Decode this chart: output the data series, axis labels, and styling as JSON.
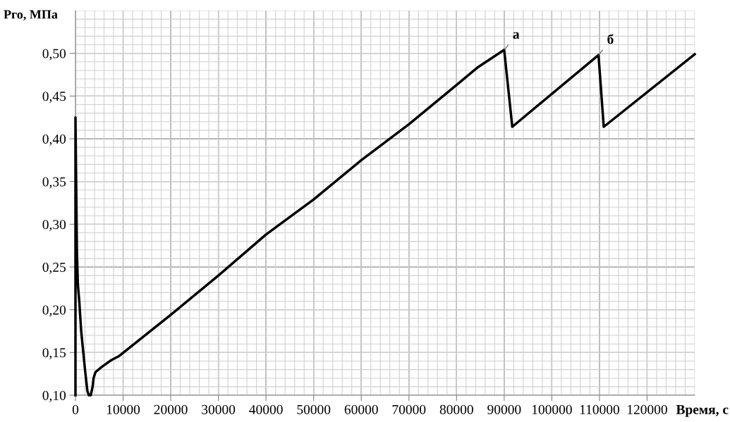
{
  "chart_data": {
    "type": "line",
    "xlabel": "Время, с",
    "ylabel": "Рго, МПа",
    "x": [
      0,
      0,
      300,
      500,
      800,
      1200,
      2000,
      2500,
      2800,
      3200,
      3600,
      3800,
      4200,
      5500,
      7500,
      9200,
      20000,
      30000,
      40000,
      50000,
      60000,
      70000,
      80000,
      84300,
      90000,
      91700,
      109800,
      110900,
      130000
    ],
    "series": [
      {
        "color": "#000000",
        "values": [
          0.1,
          0.425,
          0.27,
          0.23,
          0.21,
          0.175,
          0.13,
          0.105,
          0.1,
          0.1,
          0.11,
          0.12,
          0.127,
          0.133,
          0.141,
          0.146,
          0.194,
          0.24,
          0.288,
          0.329,
          0.375,
          0.417,
          0.463,
          0.483,
          0.504,
          0.414,
          0.498,
          0.414,
          0.499
        ]
      }
    ],
    "xlim": [
      0,
      130000
    ],
    "ylim": [
      0.1,
      0.55
    ],
    "xticks": [
      0,
      10000,
      20000,
      30000,
      40000,
      50000,
      60000,
      70000,
      80000,
      90000,
      100000,
      110000,
      120000
    ],
    "yticks": [
      {
        "value": 0.1,
        "label": "0,10"
      },
      {
        "value": 0.15,
        "label": "0,15"
      },
      {
        "value": 0.2,
        "label": "0,20"
      },
      {
        "value": 0.25,
        "label": "0,25"
      },
      {
        "value": 0.3,
        "label": "0,30"
      },
      {
        "value": 0.35,
        "label": "0,35"
      },
      {
        "value": 0.4,
        "label": "0,40"
      },
      {
        "value": 0.45,
        "label": "0,45"
      },
      {
        "value": 0.5,
        "label": "0,50"
      }
    ],
    "annotations": [
      {
        "text": "а",
        "x": 90000,
        "y": 0.504
      },
      {
        "text": "б",
        "x": 109800,
        "y": 0.498
      }
    ],
    "grid": true,
    "legend": false,
    "marker": "none",
    "line_style": "solid"
  }
}
